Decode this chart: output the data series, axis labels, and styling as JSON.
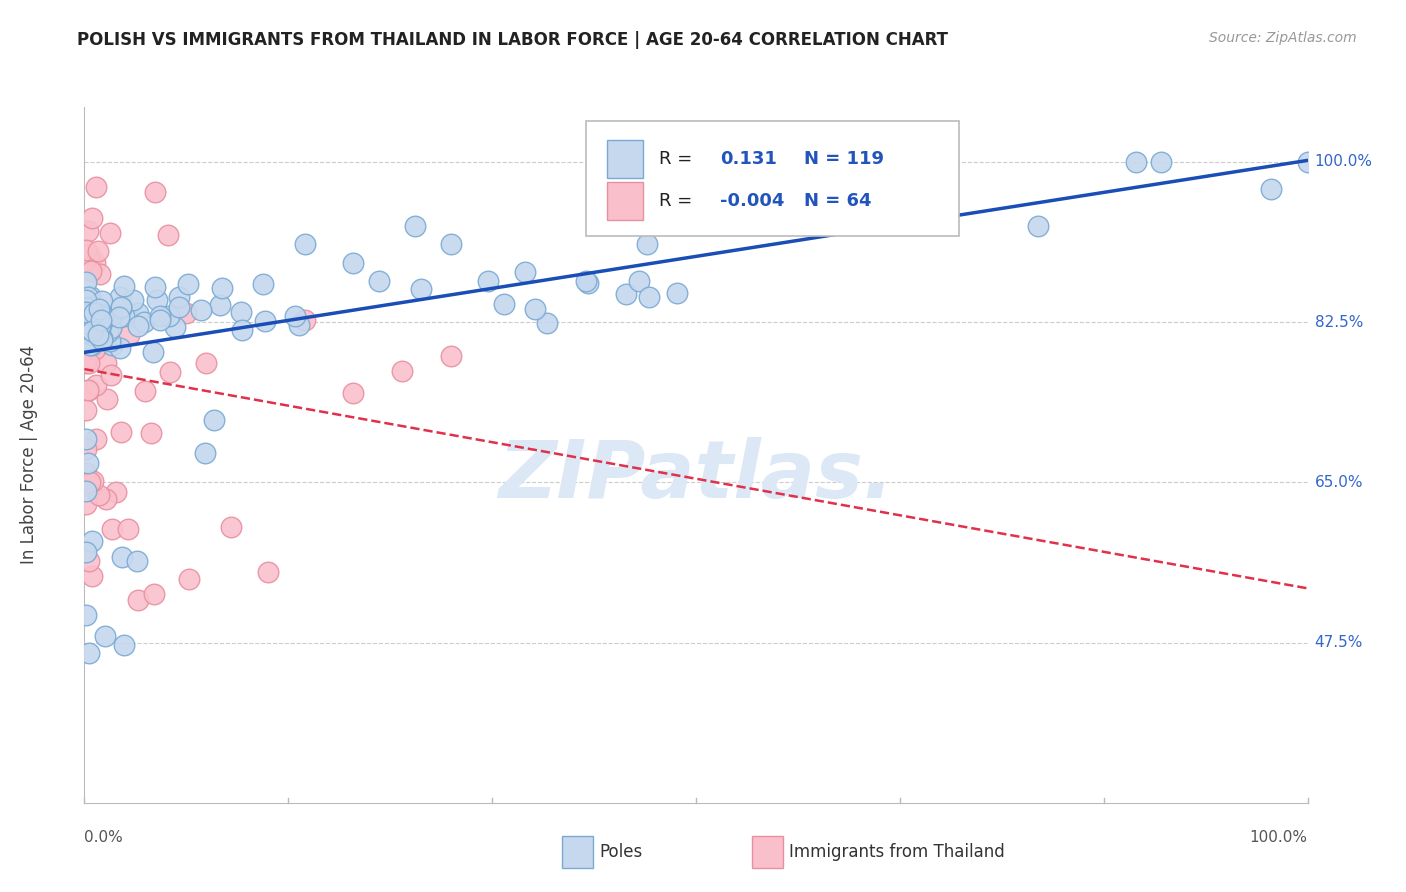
{
  "title": "POLISH VS IMMIGRANTS FROM THAILAND IN LABOR FORCE | AGE 20-64 CORRELATION CHART",
  "source": "Source: ZipAtlas.com",
  "ylabel": "In Labor Force | Age 20-64",
  "ytick_labels": [
    "47.5%",
    "65.0%",
    "82.5%",
    "100.0%"
  ],
  "ytick_values": [
    0.475,
    0.65,
    0.825,
    1.0
  ],
  "xmin": 0.0,
  "xmax": 1.0,
  "ymin": 0.3,
  "ymax": 1.06,
  "r_blue": 0.131,
  "n_blue": 119,
  "r_pink": -0.004,
  "n_pink": 64,
  "blue_fill": "#c5d8ee",
  "blue_edge": "#7aaad4",
  "pink_fill": "#f9c0cc",
  "pink_edge": "#e890a0",
  "blue_line": "#1a4db5",
  "pink_line": "#e0304a",
  "grid_color": "#cccccc",
  "watermark_text": "ZIPatlas.",
  "watermark_color": "#dce8f5",
  "title_color": "#222222",
  "right_tick_color": "#3366cc",
  "bottom_label_color": "#555555",
  "legend_text_color": "#222222",
  "legend_value_color": "#2255bb"
}
